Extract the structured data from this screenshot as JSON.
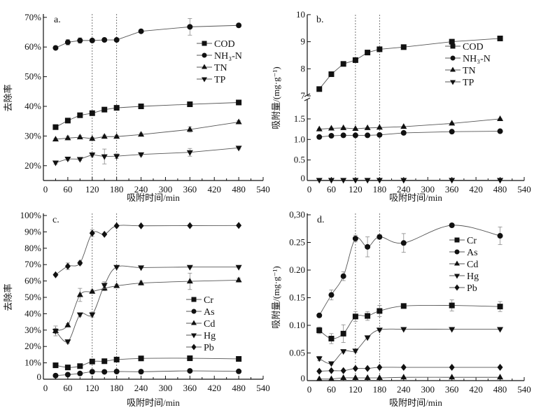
{
  "chart_data": [
    {
      "type": "line",
      "panel_label": "a.",
      "xlabel": "吸附时间/min",
      "ylabel": "去除率",
      "xlim": [
        0,
        540
      ],
      "xticks": [
        "0",
        "60",
        "120",
        "180",
        "240",
        "300",
        "360",
        "420",
        "480",
        "540"
      ],
      "ylim": [
        15,
        71
      ],
      "yticks": [
        {
          "v": 20,
          "label": "20%"
        },
        {
          "v": 30,
          "label": "30%"
        },
        {
          "v": 40,
          "label": "40%"
        },
        {
          "v": 50,
          "label": "50%"
        },
        {
          "v": 60,
          "label": "60%"
        },
        {
          "v": 70,
          "label": "70%"
        }
      ],
      "vlines": [
        120,
        180
      ],
      "legend_position": "upper-right",
      "x": [
        30,
        60,
        90,
        120,
        150,
        180,
        240,
        360,
        480
      ],
      "series": [
        {
          "name": "COD",
          "marker": "square",
          "values": [
            33.0,
            35.2,
            37.0,
            37.7,
            38.9,
            39.5,
            40.0,
            40.7,
            41.3
          ],
          "err": [
            0.3,
            0.3,
            0.3,
            0.3,
            0.3,
            0.3,
            0.3,
            0.3,
            0.3
          ]
        },
        {
          "name": "NH₃-N",
          "marker": "circle",
          "values": [
            59.7,
            61.6,
            62.2,
            62.2,
            62.4,
            62.4,
            65.3,
            66.8,
            67.3
          ],
          "err": [
            0.3,
            0.9,
            0.9,
            0.3,
            0.6,
            0.3,
            0.3,
            2.8,
            0.3
          ]
        },
        {
          "name": "TN",
          "marker": "triangle-up",
          "values": [
            28.9,
            29.3,
            29.6,
            29.1,
            29.8,
            29.8,
            30.5,
            32.2,
            34.7
          ],
          "err": [
            0.3,
            0.6,
            0.5,
            0.4,
            0.5,
            0.4,
            0.5,
            0.9,
            0.5
          ]
        },
        {
          "name": "TP",
          "marker": "triangle-down",
          "values": [
            21.0,
            22.3,
            22.2,
            23.7,
            23.1,
            23.2,
            23.8,
            24.5,
            26.0
          ],
          "err": [
            0.5,
            0.5,
            0.4,
            0.7,
            2.5,
            0.8,
            0.5,
            1.3,
            0.4
          ]
        }
      ]
    },
    {
      "type": "line",
      "panel_label": "b.",
      "xlabel": "吸附时间/min",
      "ylabel": "吸附量/(mg·g⁻¹)",
      "xlim": [
        0,
        540
      ],
      "xticks": [
        "0",
        "60",
        "120",
        "180",
        "240",
        "300",
        "360",
        "420",
        "480",
        "540"
      ],
      "ylim": [
        0,
        10
      ],
      "y_axis_break": [
        2.05,
        6.9
      ],
      "yticks": [
        {
          "v": 0,
          "label": "0"
        },
        {
          "v": 0.5,
          "label": "0.5"
        },
        {
          "v": 1.0,
          "label": "1.0"
        },
        {
          "v": 1.5,
          "label": "1.5"
        },
        {
          "v": 7,
          "label": "7"
        },
        {
          "v": 8,
          "label": "8"
        },
        {
          "v": 9,
          "label": "9"
        },
        {
          "v": 10,
          "label": "10"
        }
      ],
      "vlines": [
        120,
        180
      ],
      "legend_position": "right",
      "x": [
        30,
        60,
        90,
        120,
        150,
        180,
        240,
        360,
        480
      ],
      "series": [
        {
          "name": "COD",
          "marker": "square",
          "values": [
            7.25,
            7.8,
            8.18,
            8.32,
            8.6,
            8.72,
            8.8,
            9.0,
            9.12
          ],
          "err": [
            0.08,
            0.03,
            0.03,
            0.03,
            0.03,
            0.03,
            0.03,
            0.03,
            0.03
          ]
        },
        {
          "name": "NH₃-N",
          "marker": "circle",
          "values": [
            1.06,
            1.09,
            1.1,
            1.1,
            1.1,
            1.11,
            1.16,
            1.19,
            1.2
          ],
          "err": [
            0.01,
            0.01,
            0.01,
            0.01,
            0.01,
            0.01,
            0.01,
            0.03,
            0.01
          ]
        },
        {
          "name": "TN",
          "marker": "triangle-up",
          "values": [
            1.25,
            1.27,
            1.28,
            1.26,
            1.28,
            1.29,
            1.31,
            1.39,
            1.5
          ],
          "err": [
            0.01,
            0.01,
            0.01,
            0.01,
            0.01,
            0.01,
            0.01,
            0.02,
            0.01
          ]
        },
        {
          "name": "TP",
          "marker": "triangle-down",
          "values": [
            0.01,
            0.01,
            0.01,
            0.01,
            0.01,
            0.01,
            0.01,
            0.01,
            0.01
          ],
          "err": [
            0,
            0,
            0,
            0,
            0,
            0,
            0,
            0,
            0
          ]
        }
      ]
    },
    {
      "type": "line",
      "panel_label": "c.",
      "xlabel": "吸附时间/min",
      "ylabel": "去除率",
      "xlim": [
        0,
        540
      ],
      "xticks": [
        "0",
        "60",
        "120",
        "180",
        "240",
        "300",
        "360",
        "420",
        "480",
        "540"
      ],
      "ylim": [
        0,
        100
      ],
      "yticks": [
        {
          "v": 0,
          "label": "0"
        },
        {
          "v": 10,
          "label": "10%"
        },
        {
          "v": 20,
          "label": "20%"
        },
        {
          "v": 30,
          "label": "30%"
        },
        {
          "v": 40,
          "label": "40%"
        },
        {
          "v": 50,
          "label": "50%"
        },
        {
          "v": 60,
          "label": "60%"
        },
        {
          "v": 70,
          "label": "70%"
        },
        {
          "v": 80,
          "label": "80%"
        },
        {
          "v": 90,
          "label": "90%"
        },
        {
          "v": 100,
          "label": "100%"
        }
      ],
      "vlines": [
        120,
        180
      ],
      "legend_position": "lower-right",
      "x": [
        30,
        60,
        90,
        120,
        150,
        180,
        240,
        360,
        480
      ],
      "series": [
        {
          "name": "Cr",
          "marker": "square",
          "values": [
            8.5,
            7.2,
            8.0,
            10.8,
            11.0,
            12.0,
            12.7,
            12.8,
            12.4
          ],
          "err": [
            0.5,
            0.5,
            1.0,
            0.5,
            0.5,
            0.5,
            0.5,
            0.5,
            0.5
          ]
        },
        {
          "name": "As",
          "marker": "circle",
          "values": [
            2.2,
            2.8,
            3.5,
            4.6,
            4.5,
            4.7,
            4.6,
            5.1,
            4.8
          ],
          "err": [
            0.3,
            0.3,
            0.3,
            0.3,
            0.3,
            0.3,
            0.3,
            0.3,
            0.3
          ]
        },
        {
          "name": "Cd",
          "marker": "triangle-up",
          "values": [
            29.5,
            33.0,
            51.5,
            53.5,
            55.5,
            57.0,
            58.7,
            59.8,
            60.5
          ],
          "err": [
            3.0,
            1.0,
            4.0,
            1.0,
            1.5,
            1.0,
            1.2,
            5.0,
            1.2
          ]
        },
        {
          "name": "Hg",
          "marker": "triangle-down",
          "values": [
            29.5,
            23.0,
            39.5,
            39.5,
            57.5,
            68.5,
            68.2,
            68.5,
            68.5
          ],
          "err": [
            1.5,
            1.0,
            1.0,
            1.5,
            2.0,
            0.5,
            0.5,
            0.5,
            0.5
          ]
        },
        {
          "name": "Pb",
          "marker": "diamond",
          "values": [
            63.8,
            69.0,
            71.0,
            89.2,
            88.5,
            93.7,
            93.7,
            93.8,
            93.9
          ],
          "err": [
            0.5,
            2.0,
            1.2,
            2.0,
            0.5,
            0.5,
            0.5,
            0.5,
            0.5
          ]
        }
      ]
    },
    {
      "type": "line",
      "panel_label": "d.",
      "xlabel": "吸附时间/min",
      "ylabel": "吸附量/(mg·g⁻¹)",
      "xlim": [
        0,
        540
      ],
      "xticks": [
        "0",
        "60",
        "120",
        "180",
        "240",
        "300",
        "360",
        "420",
        "480",
        "540"
      ],
      "ylim": [
        0,
        0.3
      ],
      "yticks": [
        {
          "v": 0,
          "label": "0"
        },
        {
          "v": 0.05,
          "label": "0.05"
        },
        {
          "v": 0.1,
          "label": "0.10"
        },
        {
          "v": 0.15,
          "label": "0.15"
        },
        {
          "v": 0.2,
          "label": "0.20"
        },
        {
          "v": 0.25,
          "label": "0.25"
        },
        {
          "v": 0.3,
          "label": "0,30"
        }
      ],
      "vlines": [
        120,
        180
      ],
      "legend_position": "upper-right",
      "x": [
        30,
        60,
        90,
        120,
        150,
        180,
        240,
        360,
        480
      ],
      "series": [
        {
          "name": "Cr",
          "marker": "square",
          "values": [
            0.091,
            0.076,
            0.085,
            0.116,
            0.117,
            0.126,
            0.135,
            0.136,
            0.134
          ],
          "err": [
            0.006,
            0.009,
            0.016,
            0.009,
            0.008,
            0.01,
            0.003,
            0.01,
            0.009
          ]
        },
        {
          "name": "As",
          "marker": "circle",
          "values": [
            0.118,
            0.155,
            0.189,
            0.257,
            0.242,
            0.26,
            0.249,
            0.281,
            0.262
          ],
          "err": [
            0.003,
            0.009,
            0.008,
            0.006,
            0.018,
            0.004,
            0.017,
            0.003,
            0.016
          ]
        },
        {
          "name": "Cd",
          "marker": "triangle-up",
          "values": [
            0.003,
            0.003,
            0.005,
            0.005,
            0.005,
            0.005,
            0.006,
            0.006,
            0.006
          ],
          "err": [
            0,
            0,
            0,
            0,
            0,
            0,
            0,
            0,
            0
          ]
        },
        {
          "name": "Hg",
          "marker": "triangle-down",
          "values": [
            0.04,
            0.031,
            0.053,
            0.054,
            0.078,
            0.092,
            0.093,
            0.093,
            0.093
          ],
          "err": [
            0.004,
            0.002,
            0.002,
            0.003,
            0.002,
            0.002,
            0.001,
            0.001,
            0.001
          ]
        },
        {
          "name": "Pb",
          "marker": "diamond",
          "values": [
            0.017,
            0.018,
            0.018,
            0.022,
            0.022,
            0.024,
            0.024,
            0.024,
            0.024
          ],
          "err": [
            0,
            0,
            0,
            0,
            0,
            0,
            0,
            0,
            0
          ]
        }
      ]
    }
  ]
}
